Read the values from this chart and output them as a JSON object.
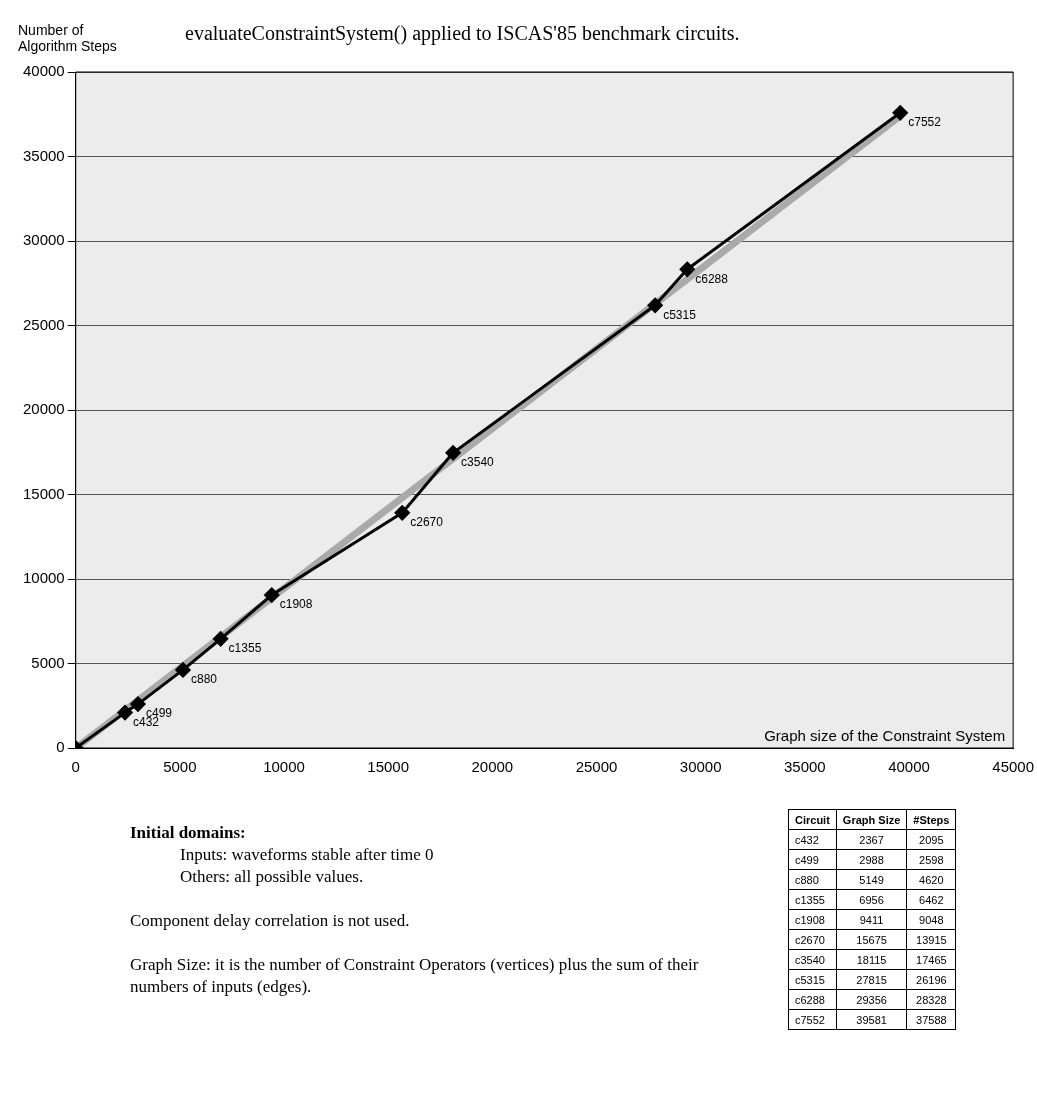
{
  "chart_data": [
    {
      "type": "line",
      "title": "evaluateConstraintSystem() applied to ISCAS'85 benchmark circuits.",
      "ylabel": "Number of Algorithm Steps",
      "xlabel": "Graph size of the Constraint System",
      "xlim": [
        0,
        45000
      ],
      "xticks": [
        0,
        5000,
        10000,
        15000,
        20000,
        25000,
        30000,
        35000,
        40000,
        45000
      ],
      "ylim": [
        0,
        40000
      ],
      "yticks": [
        0,
        5000,
        10000,
        15000,
        20000,
        25000,
        30000,
        35000,
        40000
      ],
      "grid": "y",
      "legend": false,
      "series": [
        {
          "type": "line",
          "color": "#aaaaaa",
          "marker": "none",
          "x": [
            0,
            39581
          ],
          "values": [
            0,
            37400
          ]
        },
        {
          "type": "line",
          "color": "#000000",
          "marker": "diamond",
          "x": [
            0,
            2367,
            2988,
            5149,
            6956,
            9411,
            15675,
            18115,
            27815,
            29356,
            39581
          ],
          "values": [
            0,
            2095,
            2598,
            4620,
            6462,
            9048,
            13915,
            17465,
            26196,
            28328,
            37588
          ]
        }
      ],
      "annotations": [
        {
          "text": "c432",
          "x": 2367,
          "y": 2095
        },
        {
          "text": "c499",
          "x": 2988,
          "y": 2598
        },
        {
          "text": "c880",
          "x": 5149,
          "y": 4620
        },
        {
          "text": "c1355",
          "x": 6956,
          "y": 6462
        },
        {
          "text": "c1908",
          "x": 9411,
          "y": 9048
        },
        {
          "text": "c2670",
          "x": 15675,
          "y": 13915
        },
        {
          "text": "c3540",
          "x": 18115,
          "y": 17465
        },
        {
          "text": "c5315",
          "x": 27815,
          "y": 26196
        },
        {
          "text": "c6288",
          "x": 29356,
          "y": 28328
        },
        {
          "text": "c7552",
          "x": 39581,
          "y": 37588
        },
        "Initial domains:",
        "Inputs: waveforms stable after time 0",
        "Others: all possible values.",
        "Component delay correlation is not used.",
        "Graph Size: it is the number of Constraint Operators (vertices) plus the sum of their numbers of inputs (edges)."
      ]
    },
    {
      "type": "other",
      "xlabel": "Circuit",
      "data_labels": true,
      "categories": [
        "c432",
        "c499",
        "c880",
        "c1355",
        "c1908",
        "c2670",
        "c3540",
        "c5315",
        "c6288",
        "c7552"
      ],
      "series": [
        {
          "name": "Graph Size",
          "values": [
            2367,
            2988,
            5149,
            6956,
            9411,
            15675,
            18115,
            27815,
            29356,
            39581
          ]
        },
        {
          "name": "#Steps",
          "values": [
            2095,
            2598,
            4620,
            6462,
            9048,
            13915,
            17465,
            26196,
            28328,
            37588
          ]
        }
      ]
    }
  ]
}
